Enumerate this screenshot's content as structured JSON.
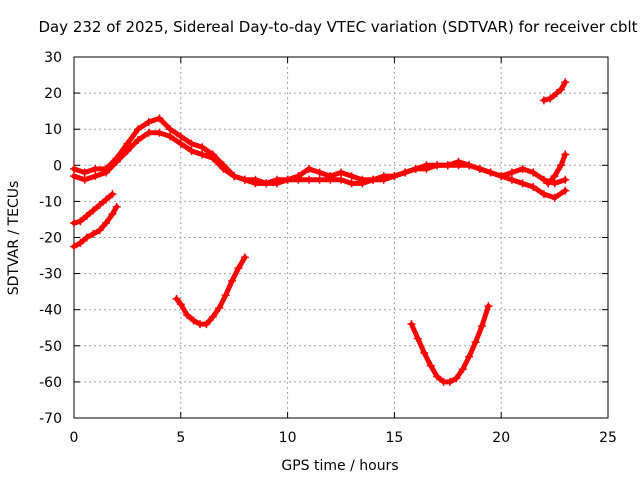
{
  "chart_data": {
    "type": "scatter",
    "title": "Day 232 of 2025, Sidereal Day-to-day VTEC variation (SDTVAR) for receiver cblt",
    "xlabel": "GPS time / hours",
    "ylabel": "SDTVAR / TECUs",
    "xlim": [
      0,
      25
    ],
    "ylim": [
      -70,
      30
    ],
    "x_ticks": [
      0,
      5,
      10,
      15,
      20,
      25
    ],
    "y_ticks": [
      -70,
      -60,
      -50,
      -40,
      -30,
      -20,
      -10,
      0,
      10,
      20,
      30
    ],
    "grid": true,
    "marker": "plus",
    "color": "#ff0000",
    "series": [
      {
        "name": "main-upper",
        "x": [
          0.0,
          0.5,
          1.0,
          1.5,
          2.0,
          2.5,
          3.0,
          3.5,
          4.0,
          4.5,
          5.0,
          5.5,
          6.0,
          6.5,
          7.0,
          7.5,
          8.0,
          8.5,
          9.0,
          9.5,
          10.0,
          10.5,
          11.0,
          11.5,
          12.0,
          12.5,
          13.0,
          13.5,
          14.0,
          14.5,
          15.0,
          15.5,
          16.0,
          16.5,
          17.0,
          17.5,
          18.0,
          18.5,
          19.0,
          19.5,
          20.0,
          20.5,
          21.0,
          21.5,
          22.0,
          22.5,
          23.0
        ],
        "y": [
          -1,
          -2,
          -1,
          -1,
          2,
          6,
          10,
          12,
          13,
          10,
          8,
          6,
          5,
          3,
          0,
          -3,
          -4,
          -4,
          -5,
          -4,
          -4,
          -3,
          -1,
          -2,
          -3,
          -2,
          -3,
          -4,
          -4,
          -3,
          -3,
          -2,
          -1,
          0,
          0,
          0,
          1,
          0,
          -1,
          -2,
          -3,
          -2,
          -1,
          -2,
          -4,
          -5,
          -4
        ]
      },
      {
        "name": "main-lower",
        "x": [
          0.0,
          0.5,
          1.0,
          1.5,
          2.0,
          2.5,
          3.0,
          3.5,
          4.0,
          4.5,
          5.0,
          5.5,
          6.0,
          6.5,
          7.0,
          7.5,
          8.0,
          8.5,
          9.0,
          9.5,
          10.0,
          10.5,
          11.0,
          11.5,
          12.0,
          12.5,
          13.0,
          13.5,
          14.0,
          14.5,
          15.0,
          15.5,
          16.0,
          16.5,
          17.0,
          17.5,
          18.0,
          18.5,
          19.0,
          19.5,
          20.0,
          20.5,
          21.0,
          21.5,
          22.0,
          22.5,
          23.0
        ],
        "y": [
          -3,
          -4,
          -3,
          -2,
          1,
          4,
          7,
          9,
          9,
          8,
          6,
          4,
          3,
          2,
          -1,
          -3,
          -4,
          -5,
          -5,
          -5,
          -4,
          -4,
          -4,
          -4,
          -4,
          -4,
          -5,
          -5,
          -4,
          -4,
          -3,
          -2,
          -1,
          -1,
          0,
          0,
          0,
          0,
          -1,
          -2,
          -3,
          -4,
          -5,
          -6,
          -8,
          -9,
          -7
        ]
      },
      {
        "name": "end-rise",
        "x": [
          22.2,
          22.5,
          22.8,
          23.0
        ],
        "y": [
          -5,
          -3,
          0,
          3
        ]
      },
      {
        "name": "end-top",
        "x": [
          22.0,
          22.3,
          22.6,
          22.8,
          23.0
        ],
        "y": [
          18,
          18.5,
          20,
          21,
          23
        ]
      },
      {
        "name": "early-a",
        "x": [
          0.0,
          0.3,
          0.6,
          0.9,
          1.2,
          1.5,
          1.8
        ],
        "y": [
          -16,
          -15.5,
          -14,
          -12.5,
          -11,
          -9.5,
          -8
        ]
      },
      {
        "name": "early-b",
        "x": [
          0.0,
          0.3,
          0.6,
          0.9,
          1.2,
          1.5,
          1.8,
          2.0
        ],
        "y": [
          -22.5,
          -21.5,
          -20,
          -19,
          -18,
          -16,
          -13.5,
          -11.5
        ]
      },
      {
        "name": "dip-1",
        "x": [
          4.8,
          5.0,
          5.3,
          5.6,
          5.9,
          6.2,
          6.5,
          6.8,
          7.1,
          7.4,
          7.7,
          8.0
        ],
        "y": [
          -37,
          -38.5,
          -41.5,
          -43,
          -44,
          -44,
          -42,
          -39.5,
          -36,
          -32,
          -28.5,
          -25.5
        ]
      },
      {
        "name": "dip-2",
        "x": [
          15.8,
          16.1,
          16.4,
          16.7,
          17.0,
          17.3,
          17.6,
          17.9,
          18.2,
          18.5,
          18.8,
          19.1,
          19.4
        ],
        "y": [
          -44,
          -48,
          -52,
          -55.5,
          -58.5,
          -60,
          -60,
          -59,
          -56.5,
          -53,
          -49,
          -44.5,
          -39
        ]
      }
    ]
  }
}
